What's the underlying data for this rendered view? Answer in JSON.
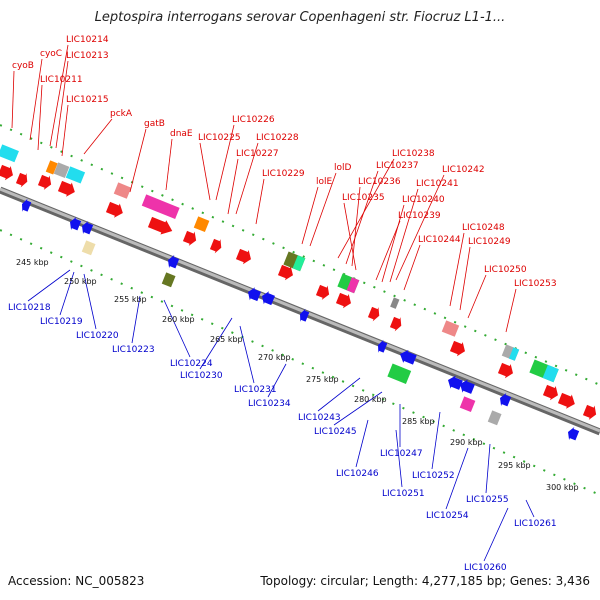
{
  "title": "Leptospira interrogans serovar Copenhageni str. Fiocruz L1-1...",
  "footer": {
    "accession": "Accession: NC_005823",
    "summary": "Topology: circular; Length: 4,277,185 bp; Genes: 3,436"
  },
  "colors": {
    "top_label": "#dd0000",
    "bottom_label": "#0000cc",
    "backbone": "#999999",
    "dots": "#33aa33"
  },
  "scale_labels": [
    "245 kbp",
    "250 kbp",
    "255 kbp",
    "260 kbp",
    "265 kbp",
    "270 kbp",
    "275 kbp",
    "280 kbp",
    "285 kbp",
    "290 kbp",
    "295 kbp",
    "300 kbp"
  ],
  "top_genes": [
    "cyoB",
    "cyoC",
    "LIC10214",
    "LIC10213",
    "LIC10211",
    "LIC10215",
    "pckA",
    "gatB",
    "dnaE",
    "LIC10226",
    "LIC10225",
    "LIC10228",
    "LIC10227",
    "LIC10229",
    "lolD",
    "lolE",
    "LIC10238",
    "LIC10237",
    "LIC10236",
    "LIC10235",
    "LIC10242",
    "LIC10241",
    "LIC10240",
    "LIC10239",
    "LIC10244",
    "LIC10248",
    "LIC10249",
    "LIC10250",
    "LIC10253"
  ],
  "bottom_genes": [
    "LIC10218",
    "LIC10219",
    "LIC10220",
    "LIC10223",
    "LIC10224",
    "LIC10230",
    "LIC10231",
    "LIC10234",
    "LIC10243",
    "LIC10245",
    "LIC10246",
    "LIC10247",
    "LIC10251",
    "LIC10252",
    "LIC10254",
    "LIC10255",
    "LIC10260",
    "LIC10261"
  ]
}
